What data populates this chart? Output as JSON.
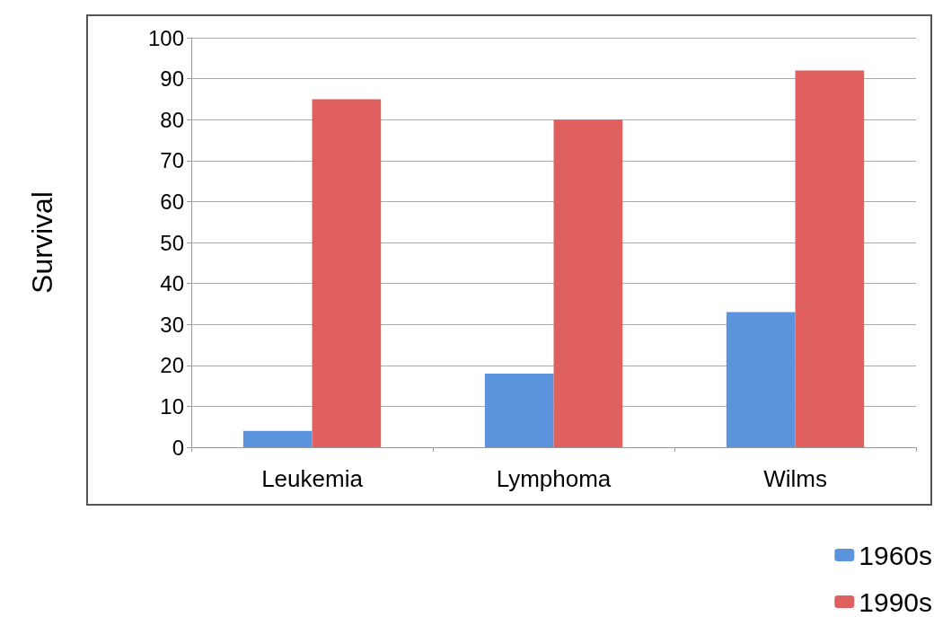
{
  "chart_data": {
    "type": "bar",
    "ylabel": "Survival",
    "categories": [
      "Leukemia",
      "Lymphoma",
      "Wilms"
    ],
    "series": [
      {
        "name": "1960s",
        "color": "#5b93dc",
        "values": [
          4,
          18,
          33
        ]
      },
      {
        "name": "1990s",
        "color": "#e06060",
        "values": [
          85,
          80,
          92
        ]
      }
    ],
    "ylim": [
      0,
      100
    ],
    "yticks": [
      0,
      10,
      20,
      30,
      40,
      50,
      60,
      70,
      80,
      90,
      100
    ],
    "grid": "y",
    "legend": "bottom right"
  }
}
